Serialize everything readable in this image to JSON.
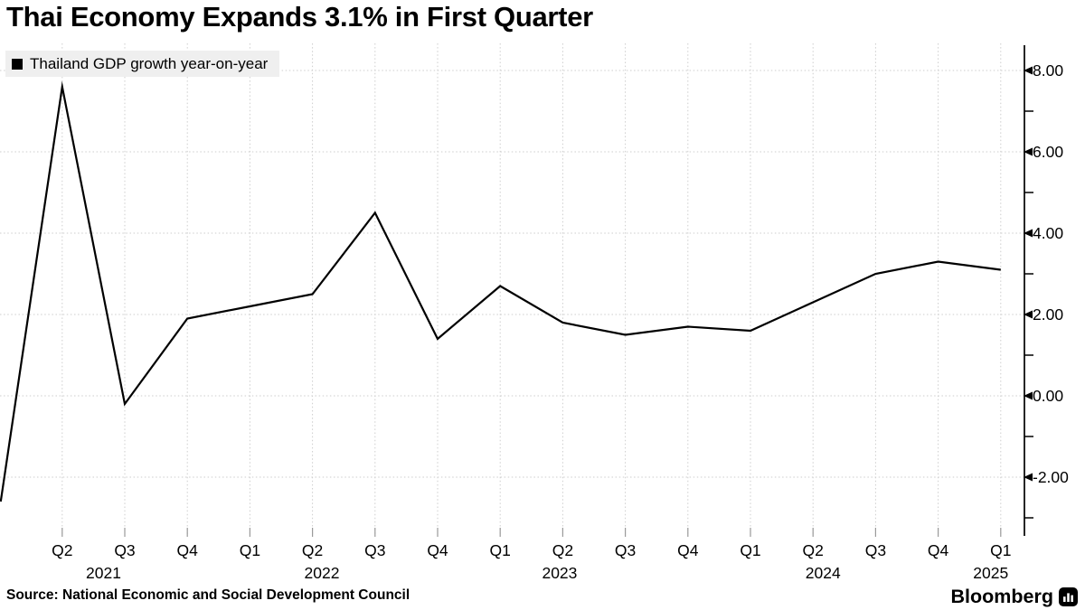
{
  "title": "Thai Economy Expands 3.1% in First Quarter",
  "legend": {
    "label": "Thailand GDP growth year-on-year",
    "marker_color": "#000000"
  },
  "source": "Source: National Economic and Social Development Council",
  "branding": {
    "logo_text": "Bloomberg",
    "logo_icon": "bloomberg-bars-icon"
  },
  "colors": {
    "background": "#ffffff",
    "line": "#000000",
    "grid": "#cdcdcd",
    "axis": "#000000",
    "legend_bg": "#efefef",
    "text": "#000000",
    "x_tick": "#9a9a9a"
  },
  "chart_data": {
    "type": "line",
    "title": "Thai Economy Expands 3.1% in First Quarter",
    "grid": true,
    "legend_position": "top-left",
    "legend": [
      "Thailand GDP growth year-on-year"
    ],
    "x": [
      "2021 Q1",
      "2021 Q2",
      "2021 Q3",
      "2021 Q4",
      "2022 Q1",
      "2022 Q2",
      "2022 Q3",
      "2022 Q4",
      "2023 Q1",
      "2023 Q2",
      "2023 Q3",
      "2023 Q4",
      "2024 Q1",
      "2024 Q2",
      "2024 Q3",
      "2024 Q4",
      "2025 Q1"
    ],
    "series": [
      {
        "name": "Thailand GDP growth year-on-year",
        "values": [
          -2.6,
          7.6,
          -0.2,
          1.9,
          2.2,
          2.5,
          4.5,
          1.4,
          2.7,
          1.8,
          1.5,
          1.7,
          1.6,
          2.3,
          3.0,
          3.3,
          3.1
        ]
      }
    ],
    "x_tick_labels": [
      "Q2",
      "Q3",
      "Q4",
      "Q1",
      "Q2",
      "Q3",
      "Q4",
      "Q1",
      "Q2",
      "Q3",
      "Q4",
      "Q1",
      "Q2",
      "Q3",
      "Q4",
      "Q1"
    ],
    "year_ticks": [
      {
        "label": "2021",
        "at": 1.66
      },
      {
        "label": "2022",
        "at": 5.15
      },
      {
        "label": "2023",
        "at": 8.95
      },
      {
        "label": "2024",
        "at": 13.16
      },
      {
        "label": "2025",
        "at": 15.84
      }
    ],
    "xlabel": "",
    "ylabel": "",
    "y_axis": {
      "side": "right",
      "tick_labels": [
        "8.00",
        "6.00",
        "4.00",
        "2.00",
        "0.00",
        "-2.00"
      ],
      "tick_values": [
        8,
        6,
        4,
        2,
        0,
        -2
      ],
      "minor_tick_values": [
        7,
        5,
        3,
        1,
        -1,
        -3
      ],
      "ylim": [
        -3.45,
        8.67
      ]
    }
  }
}
